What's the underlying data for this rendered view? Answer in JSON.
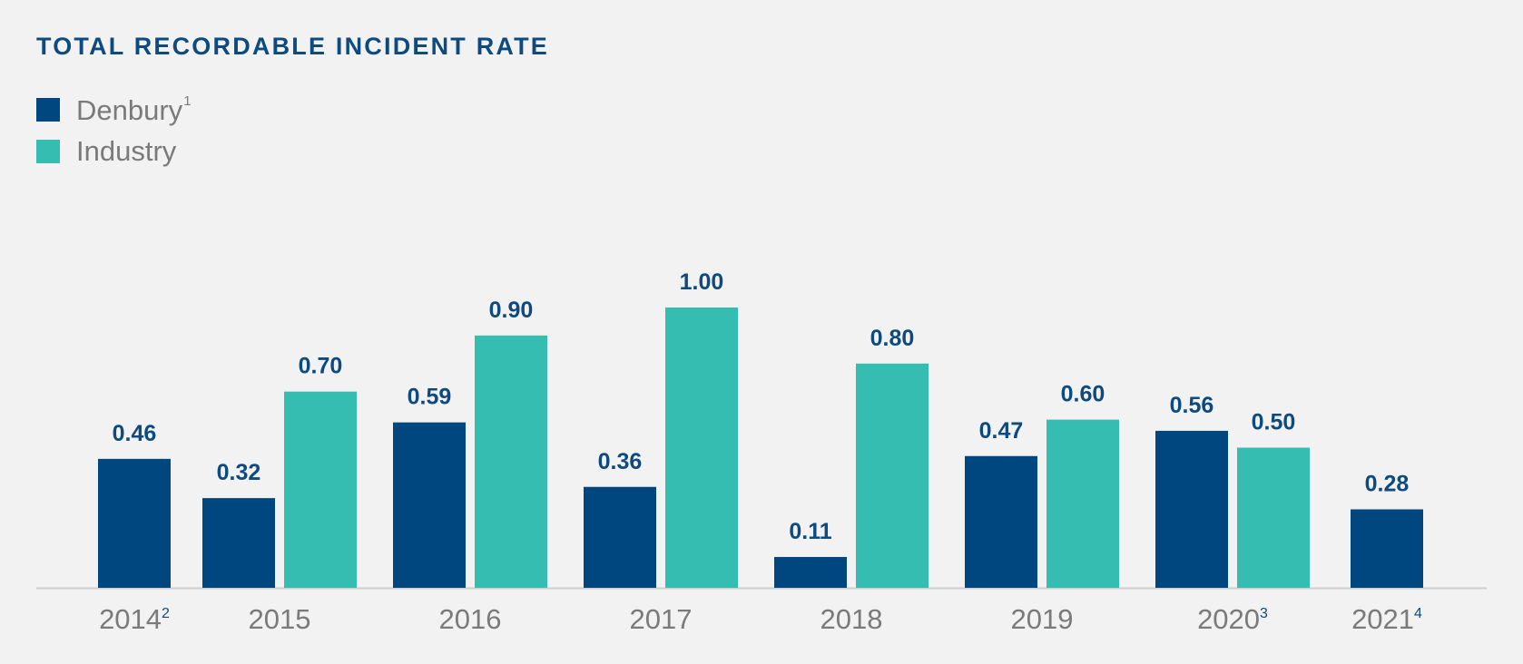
{
  "chart_data": {
    "type": "bar",
    "title": "TOTAL RECORDABLE INCIDENT RATE",
    "categories": [
      "2014",
      "2015",
      "2016",
      "2017",
      "2018",
      "2019",
      "2020",
      "2021"
    ],
    "category_footnotes": [
      "2",
      "",
      "",
      "",
      "",
      "",
      "3",
      "4"
    ],
    "series": [
      {
        "name": "Denbury",
        "footnote": "1",
        "color": "#00467f",
        "values": [
          0.46,
          0.32,
          0.59,
          0.36,
          0.11,
          0.47,
          0.56,
          0.28
        ]
      },
      {
        "name": "Industry",
        "footnote": "",
        "color": "#36bdb1",
        "values": [
          null,
          0.7,
          0.9,
          1.0,
          0.8,
          0.6,
          0.5,
          null
        ]
      }
    ],
    "value_labels": {
      "Denbury": [
        "0.46",
        "0.32",
        "0.59",
        "0.36",
        "0.11",
        "0.47",
        "0.56",
        "0.28"
      ],
      "Industry": [
        "",
        "0.70",
        "0.90",
        "1.00",
        "0.80",
        "0.60",
        "0.50",
        ""
      ]
    },
    "ylim": [
      0,
      1.0
    ],
    "grid": false,
    "legend_position": "top-left"
  }
}
